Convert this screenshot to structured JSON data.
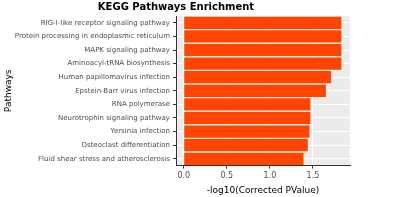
{
  "chart_data": {
    "type": "bar",
    "orientation": "horizontal",
    "title": "KEGG Pathways Enrichment",
    "x_label": "-log10(Corrected PValue)",
    "y_label": "Pathways",
    "categories": [
      "RIG-I-like receptor signaling pathway",
      "Protein processing in endoplasmic reticulum",
      "MAPK signaling pathway",
      "Aminoacyl-tRNA biosynthesis",
      "Human papillomavirus infection",
      "Epstein-Barr virus infection",
      "RNA polymerase",
      "Neurotrophin signaling pathway",
      "Yersinia infection",
      "Osteoclast differentiation",
      "Fluid shear stress and atherosclerosis"
    ],
    "values": [
      1.83,
      1.83,
      1.83,
      1.83,
      1.71,
      1.65,
      1.47,
      1.47,
      1.46,
      1.44,
      1.39
    ],
    "color": "#ff4500",
    "xlim": [
      -0.09,
      1.93
    ],
    "xticks": [
      {
        "value": 0,
        "label": "0.0"
      },
      0.5,
      {
        "value": 1,
        "label": "1.0"
      },
      1.5
    ],
    "grid": true
  }
}
